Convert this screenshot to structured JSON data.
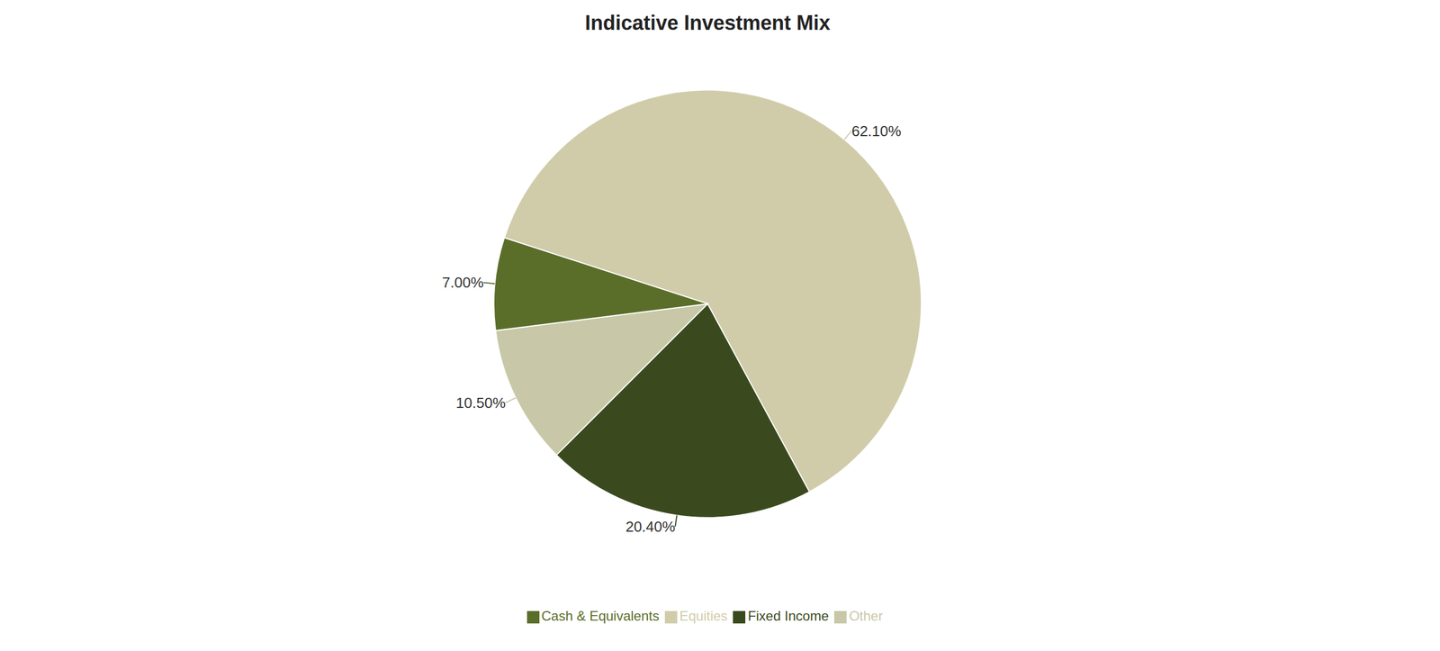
{
  "chart_data": {
    "type": "pie",
    "title": "Indicative Investment Mix",
    "categories": [
      "Equities",
      "Fixed Income",
      "Other",
      "Cash & Equivalents"
    ],
    "values": [
      62.1,
      20.4,
      10.5,
      7.0
    ],
    "value_labels": [
      "62.10%",
      "20.40%",
      "10.50%",
      "7.00%"
    ],
    "colors": [
      "#d0ccaa",
      "#3a4a1e",
      "#c8c8a8",
      "#5a6e2a"
    ],
    "data_labels": true,
    "legend": "bottom"
  }
}
